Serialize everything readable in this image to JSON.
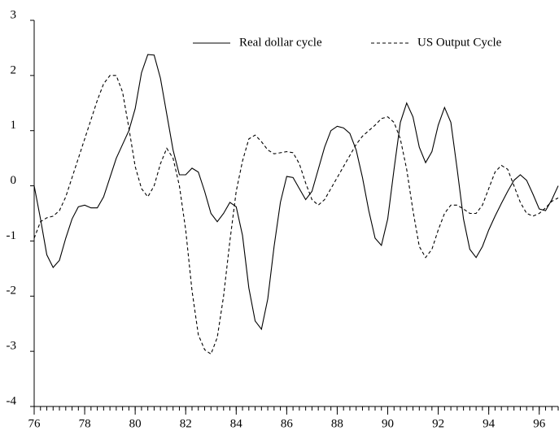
{
  "chart_data": {
    "type": "line",
    "x": [
      76,
      76.25,
      76.5,
      76.75,
      77,
      77.25,
      77.5,
      77.75,
      78,
      78.25,
      78.5,
      78.75,
      79,
      79.25,
      79.5,
      79.75,
      80,
      80.25,
      80.5,
      80.75,
      81,
      81.25,
      81.5,
      81.75,
      82,
      82.25,
      82.5,
      82.75,
      83,
      83.25,
      83.5,
      83.75,
      84,
      84.25,
      84.5,
      84.75,
      85,
      85.25,
      85.5,
      85.75,
      86,
      86.25,
      86.5,
      86.75,
      87,
      87.25,
      87.5,
      87.75,
      88,
      88.25,
      88.5,
      88.75,
      89,
      89.25,
      89.5,
      89.75,
      90,
      90.25,
      90.5,
      90.75,
      91,
      91.25,
      91.5,
      91.75,
      92,
      92.25,
      92.5,
      92.75,
      93,
      93.25,
      93.5,
      93.75,
      94,
      94.25,
      94.5,
      94.75,
      95,
      95.25,
      95.5,
      95.75,
      96,
      96.25,
      96.5,
      96.75
    ],
    "series": [
      {
        "name": "Real dollar cycle",
        "color": "#000000",
        "dash": false,
        "values": [
          0,
          -0.6,
          -1.25,
          -1.48,
          -1.35,
          -0.95,
          -0.6,
          -0.38,
          -0.35,
          -0.4,
          -0.4,
          -0.2,
          0.15,
          0.5,
          0.75,
          1.0,
          1.4,
          2.05,
          2.38,
          2.37,
          1.95,
          1.3,
          0.65,
          0.2,
          0.2,
          0.32,
          0.25,
          -0.1,
          -0.5,
          -0.65,
          -0.5,
          -0.3,
          -0.38,
          -0.9,
          -1.85,
          -2.45,
          -2.6,
          -2.05,
          -1.1,
          -0.3,
          0.17,
          0.15,
          -0.05,
          -0.25,
          -0.1,
          0.3,
          0.7,
          1.0,
          1.08,
          1.05,
          0.95,
          0.65,
          0.15,
          -0.45,
          -0.95,
          -1.08,
          -0.6,
          0.3,
          1.15,
          1.5,
          1.25,
          0.7,
          0.42,
          0.62,
          1.1,
          1.42,
          1.15,
          0.3,
          -0.6,
          -1.15,
          -1.3,
          -1.1,
          -0.8,
          -0.55,
          -0.32,
          -0.1,
          0.1,
          0.2,
          0.1,
          -0.15,
          -0.42,
          -0.45,
          -0.25,
          0
        ]
      },
      {
        "name": "US Output Cycle",
        "color": "#000000",
        "dash": true,
        "values": [
          -0.95,
          -0.65,
          -0.58,
          -0.55,
          -0.45,
          -0.2,
          0.15,
          0.5,
          0.85,
          1.2,
          1.55,
          1.85,
          2.0,
          2.0,
          1.7,
          1.05,
          0.35,
          -0.05,
          -0.2,
          0,
          0.4,
          0.68,
          0.5,
          0,
          -0.8,
          -1.9,
          -2.7,
          -2.97,
          -3.05,
          -2.75,
          -2.0,
          -1.0,
          -0.1,
          0.45,
          0.85,
          0.92,
          0.8,
          0.65,
          0.58,
          0.6,
          0.62,
          0.6,
          0.4,
          0.05,
          -0.25,
          -0.35,
          -0.25,
          -0.05,
          0.15,
          0.35,
          0.55,
          0.75,
          0.9,
          1.0,
          1.1,
          1.22,
          1.25,
          1.15,
          0.85,
          0.3,
          -0.45,
          -1.1,
          -1.3,
          -1.15,
          -0.8,
          -0.5,
          -0.35,
          -0.35,
          -0.42,
          -0.5,
          -0.5,
          -0.35,
          -0.05,
          0.25,
          0.37,
          0.3,
          0,
          -0.3,
          -0.5,
          -0.55,
          -0.5,
          -0.4,
          -0.28,
          -0.22
        ]
      }
    ],
    "xlim": [
      76,
      96.75
    ],
    "xticks": [
      76,
      78,
      80,
      82,
      84,
      86,
      88,
      90,
      92,
      94,
      96
    ],
    "ylim": [
      -4,
      3
    ],
    "yticks": [
      -4,
      -3,
      -2,
      -1,
      0,
      1,
      2,
      3
    ],
    "legend": "top"
  }
}
